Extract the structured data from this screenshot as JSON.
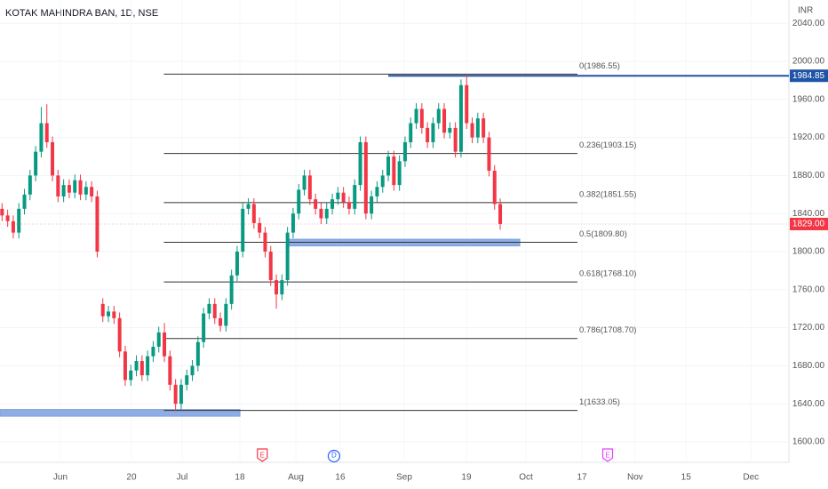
{
  "chart_data": {
    "type": "candlestick",
    "title": "KOTAK MAHINDRA BAN, 1D, NSE",
    "currency": "INR",
    "up_color": "#089981",
    "down_color": "#f23645",
    "xlim": [
      -0.37,
      140.5
    ],
    "ylim": [
      1580,
      2060
    ],
    "grid": true,
    "xticks": [
      {
        "value": 10.42,
        "label": "Jun"
      },
      {
        "value": 23.12,
        "label": "20"
      },
      {
        "value": 32.17,
        "label": "Jul"
      },
      {
        "value": 42.48,
        "label": "18"
      },
      {
        "value": 52.49,
        "label": "Aug"
      },
      {
        "value": 60.42,
        "label": "16"
      },
      {
        "value": 71.85,
        "label": "Sep"
      },
      {
        "value": 82.96,
        "label": "19"
      },
      {
        "value": 93.6,
        "label": "Oct"
      },
      {
        "value": 103.6,
        "label": "17"
      },
      {
        "value": 113.1,
        "label": "Nov"
      },
      {
        "value": 122.2,
        "label": "15"
      },
      {
        "value": 133.8,
        "label": "Dec"
      }
    ],
    "yticks": [
      {
        "value": 1600,
        "label": "1600.00"
      },
      {
        "value": 1640,
        "label": "1640.00"
      },
      {
        "value": 1680,
        "label": "1680.00"
      },
      {
        "value": 1720,
        "label": "1720.00"
      },
      {
        "value": 1760,
        "label": "1760.00"
      },
      {
        "value": 1800,
        "label": "1800.00"
      },
      {
        "value": 1840,
        "label": "1840.00"
      },
      {
        "value": 1880,
        "label": "1880.00"
      },
      {
        "value": 1920,
        "label": "1920.00"
      },
      {
        "value": 1960,
        "label": "1960.00"
      },
      {
        "value": 2000,
        "label": "2000.00"
      },
      {
        "value": 2040,
        "label": "2040.00"
      }
    ],
    "open": [
      1845,
      1838,
      1832,
      1820,
      1845,
      1860,
      1880,
      1905,
      1935,
      1915,
      1880,
      1858,
      1870,
      1862,
      1875,
      1860,
      1868,
      1858,
      1745,
      1732,
      1737,
      1730,
      1695,
      1665,
      1675,
      1685,
      1670,
      1690,
      1700,
      1715,
      1690,
      1660,
      1640,
      1660,
      1670,
      1680,
      1705,
      1735,
      1745,
      1730,
      1722,
      1745,
      1775,
      1800,
      1845,
      1850,
      1830,
      1820,
      1800,
      1770,
      1755,
      1770,
      1820,
      1840,
      1865,
      1880,
      1855,
      1845,
      1835,
      1845,
      1855,
      1862,
      1852,
      1845,
      1870,
      1915,
      1840,
      1858,
      1868,
      1880,
      1900,
      1870,
      1895,
      1915,
      1935,
      1950,
      1930,
      1915,
      1935,
      1950,
      1925,
      1930,
      1905,
      1975,
      1935,
      1920,
      1940,
      1920,
      1885,
      1850
    ],
    "high": [
      1851,
      1844,
      1838,
      1851,
      1866,
      1886,
      1911,
      1952,
      1955,
      1921,
      1886,
      1876,
      1876,
      1881,
      1881,
      1874,
      1874,
      1864,
      1751,
      1743,
      1743,
      1736,
      1701,
      1681,
      1691,
      1691,
      1696,
      1706,
      1721,
      1725,
      1696,
      1666,
      1666,
      1676,
      1686,
      1711,
      1741,
      1751,
      1751,
      1736,
      1751,
      1781,
      1806,
      1851,
      1856,
      1856,
      1836,
      1826,
      1806,
      1776,
      1776,
      1826,
      1846,
      1871,
      1886,
      1886,
      1861,
      1851,
      1851,
      1861,
      1868,
      1868,
      1858,
      1876,
      1921,
      1921,
      1864,
      1874,
      1886,
      1906,
      1906,
      1901,
      1921,
      1941,
      1956,
      1956,
      1936,
      1941,
      1956,
      1956,
      1936,
      1936,
      1981,
      1986,
      1941,
      1946,
      1946,
      1926,
      1891,
      1856
    ],
    "low": [
      1832,
      1826,
      1814,
      1814,
      1839,
      1854,
      1874,
      1899,
      1909,
      1874,
      1852,
      1852,
      1856,
      1856,
      1854,
      1854,
      1852,
      1794,
      1726,
      1726,
      1724,
      1689,
      1659,
      1659,
      1669,
      1664,
      1664,
      1684,
      1694,
      1684,
      1654,
      1633,
      1634,
      1654,
      1664,
      1674,
      1699,
      1729,
      1724,
      1716,
      1716,
      1739,
      1769,
      1794,
      1839,
      1824,
      1814,
      1794,
      1764,
      1740,
      1749,
      1764,
      1814,
      1834,
      1859,
      1849,
      1839,
      1829,
      1829,
      1839,
      1849,
      1846,
      1839,
      1839,
      1864,
      1834,
      1834,
      1852,
      1862,
      1874,
      1864,
      1864,
      1889,
      1909,
      1929,
      1924,
      1909,
      1909,
      1929,
      1919,
      1919,
      1899,
      1899,
      1929,
      1914,
      1914,
      1914,
      1879,
      1844,
      1823
    ],
    "close": [
      1838,
      1832,
      1820,
      1845,
      1860,
      1880,
      1905,
      1935,
      1915,
      1880,
      1858,
      1870,
      1862,
      1875,
      1860,
      1868,
      1858,
      1800,
      1732,
      1737,
      1730,
      1695,
      1665,
      1675,
      1685,
      1670,
      1690,
      1700,
      1715,
      1690,
      1660,
      1640,
      1660,
      1670,
      1680,
      1705,
      1735,
      1745,
      1730,
      1722,
      1745,
      1775,
      1800,
      1845,
      1850,
      1830,
      1820,
      1800,
      1770,
      1755,
      1770,
      1820,
      1840,
      1865,
      1880,
      1855,
      1845,
      1835,
      1845,
      1855,
      1862,
      1852,
      1845,
      1870,
      1915,
      1840,
      1858,
      1868,
      1880,
      1900,
      1870,
      1895,
      1915,
      1935,
      1950,
      1930,
      1915,
      1935,
      1950,
      1925,
      1930,
      1905,
      1975,
      1935,
      1920,
      1940,
      1920,
      1885,
      1850,
      1829
    ],
    "fib_start": 28.9,
    "fib_end": 102.8,
    "fib_levels": [
      {
        "value": 1986.55,
        "label": "0(1986.55)"
      },
      {
        "value": 1903.15,
        "label": "0.236(1903.15)"
      },
      {
        "value": 1851.55,
        "label": "0.382(1851.55)"
      },
      {
        "value": 1809.8,
        "label": "0.5(1809.80)"
      },
      {
        "value": 1768.1,
        "label": "0.618(1768.10)"
      },
      {
        "value": 1708.7,
        "label": "0.786(1708.70)"
      },
      {
        "value": 1633.05,
        "label": "1(1633.05)"
      }
    ],
    "price_line": {
      "value": 1984.85,
      "label": "1984.85",
      "start": 69,
      "color": "#1e53a5"
    },
    "last_price": {
      "value": 1829,
      "label": "1829.00"
    },
    "zones": [
      {
        "start": 51,
        "end": 92.5,
        "bottom": 1806,
        "top": 1813,
        "color": "#7b9fe0"
      },
      {
        "start": -0.37,
        "end": 42.5,
        "bottom": 1627,
        "top": 1634,
        "color": "#7b9fe0"
      }
    ],
    "events": [
      {
        "x": 46.5,
        "label": "E",
        "color": "#f23645"
      },
      {
        "x": 59.3,
        "label": "D",
        "color": "#2962ff"
      },
      {
        "x": 108.2,
        "label": "E",
        "color": "#e040fb"
      }
    ]
  }
}
